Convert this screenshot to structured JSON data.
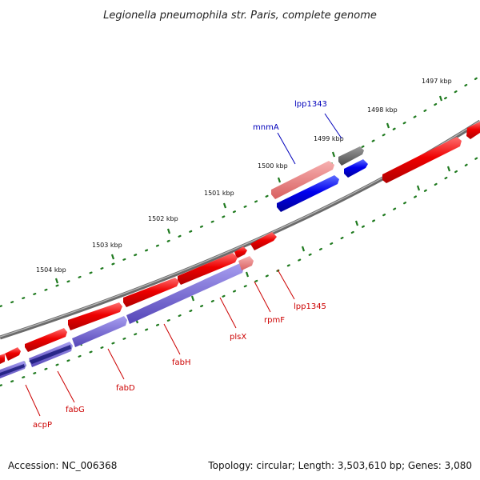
{
  "title": "Legionella pneumophila str. Paris, complete genome",
  "accession": "Accession: NC_006368",
  "topology": "Topology: circular; Length: 3,503,610 bp; Genes: 3,080",
  "ruler": [
    "1497 kbp",
    "1498 kbp",
    "1499 kbp",
    "1500 kbp",
    "1501 kbp",
    "1502 kbp",
    "1503 kbp",
    "1504 kbp"
  ],
  "gene_labels": {
    "lpp1343": "lpp1343",
    "mnmA": "mnmA",
    "lpp1345": "lpp1345",
    "rpmF": "rpmF",
    "plsX": "plsX",
    "fabH": "fabH",
    "fabD": "fabD",
    "fabG": "fabG",
    "acpP": "acpP"
  },
  "colors": {
    "forward_gene": "#ee0000",
    "reverse_gene": "#0000ee",
    "highlight_red": "#ea7f7f",
    "highlight_blue": "#6f62cc",
    "backbone": "#7a7a7a",
    "tick": "#1f7a1f",
    "label_red": "#cc0000",
    "label_blue": "#0000bb"
  }
}
